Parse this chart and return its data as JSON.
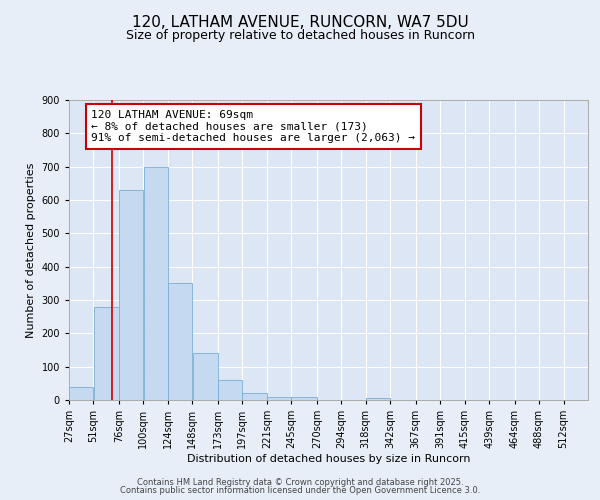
{
  "title_line1": "120, LATHAM AVENUE, RUNCORN, WA7 5DU",
  "title_line2": "Size of property relative to detached houses in Runcorn",
  "xlabel": "Distribution of detached houses by size in Runcorn",
  "ylabel": "Number of detached properties",
  "bar_color": "#c5d9f0",
  "bar_edge_color": "#7bafd4",
  "background_color": "#e8eef7",
  "plot_bg_color": "#dce6f5",
  "grid_color": "#ffffff",
  "annotation_box_color": "#cc0000",
  "annotation_line_color": "#cc0000",
  "bins": [
    27,
    51,
    76,
    100,
    124,
    148,
    173,
    197,
    221,
    245,
    270,
    294,
    318,
    342,
    367,
    391,
    415,
    439,
    464,
    488,
    512
  ],
  "values": [
    40,
    280,
    630,
    700,
    350,
    140,
    60,
    20,
    10,
    10,
    0,
    0,
    5,
    0,
    0,
    0,
    0,
    0,
    0,
    0
  ],
  "property_size": 69,
  "annotation_text_line1": "120 LATHAM AVENUE: 69sqm",
  "annotation_text_line2": "← 8% of detached houses are smaller (173)",
  "annotation_text_line3": "91% of semi-detached houses are larger (2,063) →",
  "vline_x": 69,
  "ylim": [
    0,
    900
  ],
  "yticks": [
    0,
    100,
    200,
    300,
    400,
    500,
    600,
    700,
    800,
    900
  ],
  "footer_line1": "Contains HM Land Registry data © Crown copyright and database right 2025.",
  "footer_line2": "Contains public sector information licensed under the Open Government Licence 3.0.",
  "title_fontsize": 11,
  "subtitle_fontsize": 9,
  "axis_label_fontsize": 8,
  "tick_fontsize": 7,
  "annotation_fontsize": 8,
  "footer_fontsize": 6
}
